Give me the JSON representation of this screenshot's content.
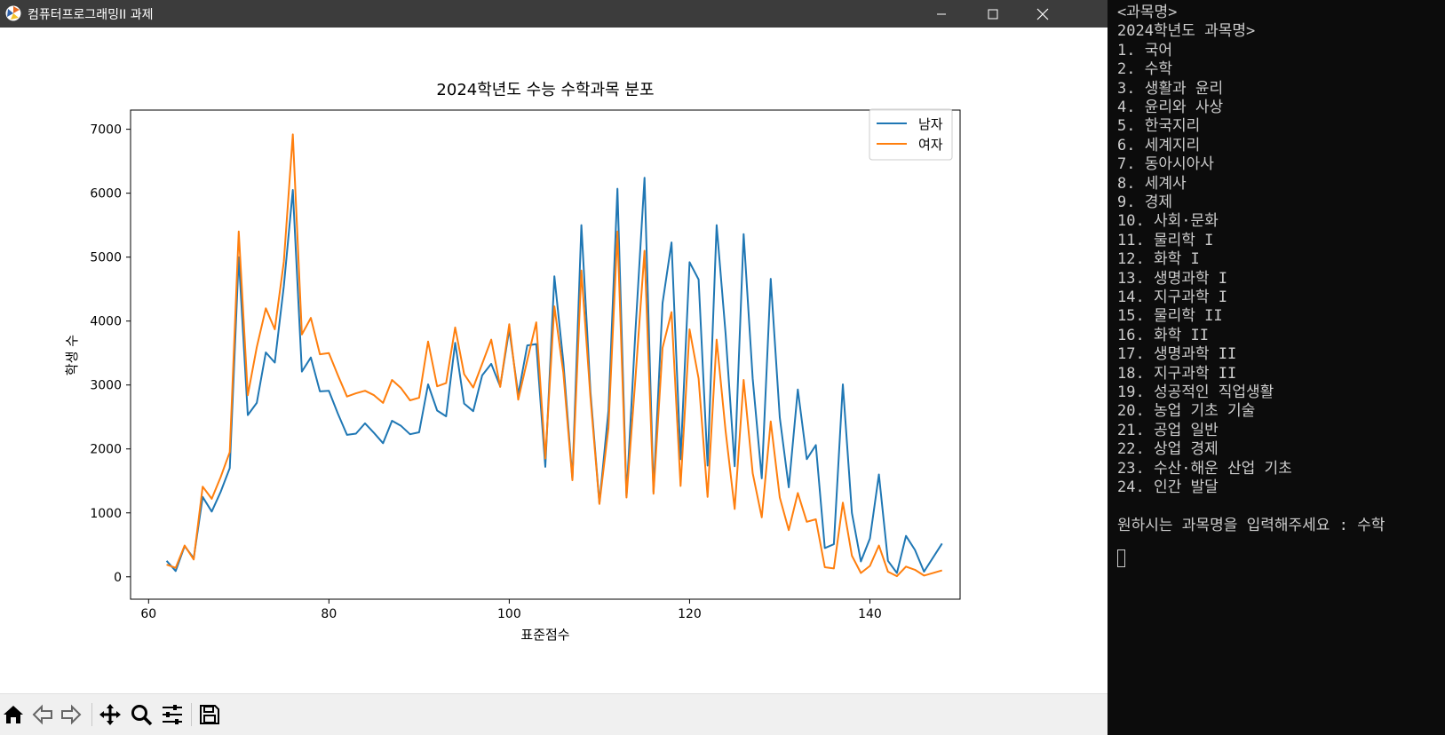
{
  "window": {
    "title": "컴퓨터프로그래밍II 과제"
  },
  "chart_data": {
    "type": "line",
    "title": "2024학년도 수능 수학과목 분포",
    "xlabel": "표준점수",
    "ylabel": "학생 수",
    "xlim": [
      58,
      150
    ],
    "ylim": [
      -350,
      7300
    ],
    "xticks": [
      60,
      80,
      100,
      120,
      140
    ],
    "yticks": [
      0,
      1000,
      2000,
      3000,
      4000,
      5000,
      6000,
      7000
    ],
    "legend_position": "upper right",
    "series": [
      {
        "name": "남자",
        "color": "#1f77b4",
        "points": [
          [
            62,
            250
          ],
          [
            63,
            90
          ],
          [
            64,
            480
          ],
          [
            65,
            290
          ],
          [
            66,
            1250
          ],
          [
            67,
            1020
          ],
          [
            68,
            1330
          ],
          [
            69,
            1700
          ],
          [
            70,
            5000
          ],
          [
            71,
            2530
          ],
          [
            72,
            2720
          ],
          [
            73,
            3510
          ],
          [
            74,
            3350
          ],
          [
            75,
            4550
          ],
          [
            76,
            6050
          ],
          [
            77,
            3210
          ],
          [
            78,
            3430
          ],
          [
            79,
            2900
          ],
          [
            80,
            2910
          ],
          [
            81,
            2550
          ],
          [
            82,
            2220
          ],
          [
            83,
            2240
          ],
          [
            84,
            2400
          ],
          [
            85,
            2250
          ],
          [
            86,
            2090
          ],
          [
            87,
            2440
          ],
          [
            88,
            2360
          ],
          [
            89,
            2230
          ],
          [
            90,
            2260
          ],
          [
            91,
            3010
          ],
          [
            92,
            2600
          ],
          [
            93,
            2510
          ],
          [
            94,
            3660
          ],
          [
            95,
            2710
          ],
          [
            96,
            2590
          ],
          [
            97,
            3150
          ],
          [
            98,
            3330
          ],
          [
            99,
            2980
          ],
          [
            100,
            3870
          ],
          [
            101,
            2850
          ],
          [
            102,
            3620
          ],
          [
            103,
            3640
          ],
          [
            104,
            1720
          ],
          [
            105,
            4700
          ],
          [
            106,
            3360
          ],
          [
            107,
            1530
          ],
          [
            108,
            5500
          ],
          [
            109,
            2900
          ],
          [
            110,
            1150
          ],
          [
            111,
            2600
          ],
          [
            112,
            6070
          ],
          [
            113,
            1260
          ],
          [
            114,
            3850
          ],
          [
            115,
            6240
          ],
          [
            116,
            1330
          ],
          [
            117,
            4280
          ],
          [
            118,
            5230
          ],
          [
            119,
            1840
          ],
          [
            120,
            4920
          ],
          [
            121,
            4650
          ],
          [
            122,
            1740
          ],
          [
            123,
            5500
          ],
          [
            124,
            3800
          ],
          [
            125,
            1730
          ],
          [
            126,
            5360
          ],
          [
            127,
            3100
          ],
          [
            128,
            1540
          ],
          [
            129,
            4660
          ],
          [
            130,
            2490
          ],
          [
            131,
            1400
          ],
          [
            132,
            2930
          ],
          [
            133,
            1840
          ],
          [
            134,
            2060
          ],
          [
            135,
            450
          ],
          [
            136,
            510
          ],
          [
            137,
            3010
          ],
          [
            138,
            1000
          ],
          [
            139,
            240
          ],
          [
            140,
            600
          ],
          [
            141,
            1600
          ],
          [
            142,
            250
          ],
          [
            143,
            60
          ],
          [
            144,
            640
          ],
          [
            145,
            420
          ],
          [
            146,
            80
          ],
          [
            148,
            520
          ]
        ]
      },
      {
        "name": "여자",
        "color": "#ff7f0e",
        "points": [
          [
            62,
            190
          ],
          [
            63,
            140
          ],
          [
            64,
            490
          ],
          [
            65,
            270
          ],
          [
            66,
            1410
          ],
          [
            67,
            1220
          ],
          [
            68,
            1560
          ],
          [
            69,
            1950
          ],
          [
            70,
            5400
          ],
          [
            71,
            2840
          ],
          [
            72,
            3590
          ],
          [
            73,
            4200
          ],
          [
            74,
            3870
          ],
          [
            75,
            4930
          ],
          [
            76,
            6920
          ],
          [
            77,
            3790
          ],
          [
            78,
            4050
          ],
          [
            79,
            3480
          ],
          [
            80,
            3500
          ],
          [
            81,
            3150
          ],
          [
            82,
            2820
          ],
          [
            83,
            2870
          ],
          [
            84,
            2910
          ],
          [
            85,
            2840
          ],
          [
            86,
            2720
          ],
          [
            87,
            3080
          ],
          [
            88,
            2950
          ],
          [
            89,
            2760
          ],
          [
            90,
            2800
          ],
          [
            91,
            3680
          ],
          [
            92,
            2980
          ],
          [
            93,
            3030
          ],
          [
            94,
            3900
          ],
          [
            95,
            3170
          ],
          [
            96,
            2960
          ],
          [
            97,
            3330
          ],
          [
            98,
            3710
          ],
          [
            99,
            2970
          ],
          [
            100,
            3950
          ],
          [
            101,
            2770
          ],
          [
            102,
            3390
          ],
          [
            103,
            3980
          ],
          [
            104,
            1850
          ],
          [
            105,
            4230
          ],
          [
            106,
            3190
          ],
          [
            107,
            1510
          ],
          [
            108,
            4790
          ],
          [
            109,
            2810
          ],
          [
            110,
            1140
          ],
          [
            111,
            2330
          ],
          [
            112,
            5400
          ],
          [
            113,
            1240
          ],
          [
            114,
            3110
          ],
          [
            115,
            5100
          ],
          [
            116,
            1300
          ],
          [
            117,
            3580
          ],
          [
            118,
            4140
          ],
          [
            119,
            1420
          ],
          [
            120,
            3870
          ],
          [
            121,
            3100
          ],
          [
            122,
            1250
          ],
          [
            123,
            3710
          ],
          [
            124,
            2280
          ],
          [
            125,
            1060
          ],
          [
            126,
            3080
          ],
          [
            127,
            1620
          ],
          [
            128,
            930
          ],
          [
            129,
            2430
          ],
          [
            130,
            1240
          ],
          [
            131,
            730
          ],
          [
            132,
            1310
          ],
          [
            133,
            860
          ],
          [
            134,
            900
          ],
          [
            135,
            150
          ],
          [
            136,
            130
          ],
          [
            137,
            1160
          ],
          [
            138,
            330
          ],
          [
            139,
            60
          ],
          [
            140,
            170
          ],
          [
            141,
            490
          ],
          [
            142,
            80
          ],
          [
            143,
            10
          ],
          [
            144,
            160
          ],
          [
            145,
            110
          ],
          [
            146,
            20
          ],
          [
            148,
            100
          ]
        ]
      }
    ]
  },
  "terminal": {
    "lines": [
      "<과목명>",
      "2024학년도 과목명>",
      "1. 국어",
      "2. 수학",
      "3. 생활과 윤리",
      "4. 윤리와 사상",
      "5. 한국지리",
      "6. 세계지리",
      "7. 동아시아사",
      "8. 세계사",
      "9. 경제",
      "10. 사회·문화",
      "11. 물리학 I",
      "12. 화학 I",
      "13. 생명과학 I",
      "14. 지구과학 I",
      "15. 물리학 II",
      "16. 화학 II",
      "17. 생명과학 II",
      "18. 지구과학 II",
      "19. 성공적인 직업생활",
      "20. 농업 기초 기술",
      "21. 공업 일반",
      "22. 상업 경제",
      "23. 수산·해운 산업 기초",
      "24. 인간 발달",
      "",
      "원하시는 과목명을 입력해주세요 : 수학"
    ]
  },
  "icons": {
    "toolbar": [
      "home-icon",
      "back-arrow-icon",
      "forward-arrow-icon",
      "pan-icon",
      "zoom-icon",
      "configure-subplots-icon",
      "save-icon"
    ],
    "window": [
      "minimize-icon",
      "maximize-icon",
      "close-icon"
    ]
  }
}
